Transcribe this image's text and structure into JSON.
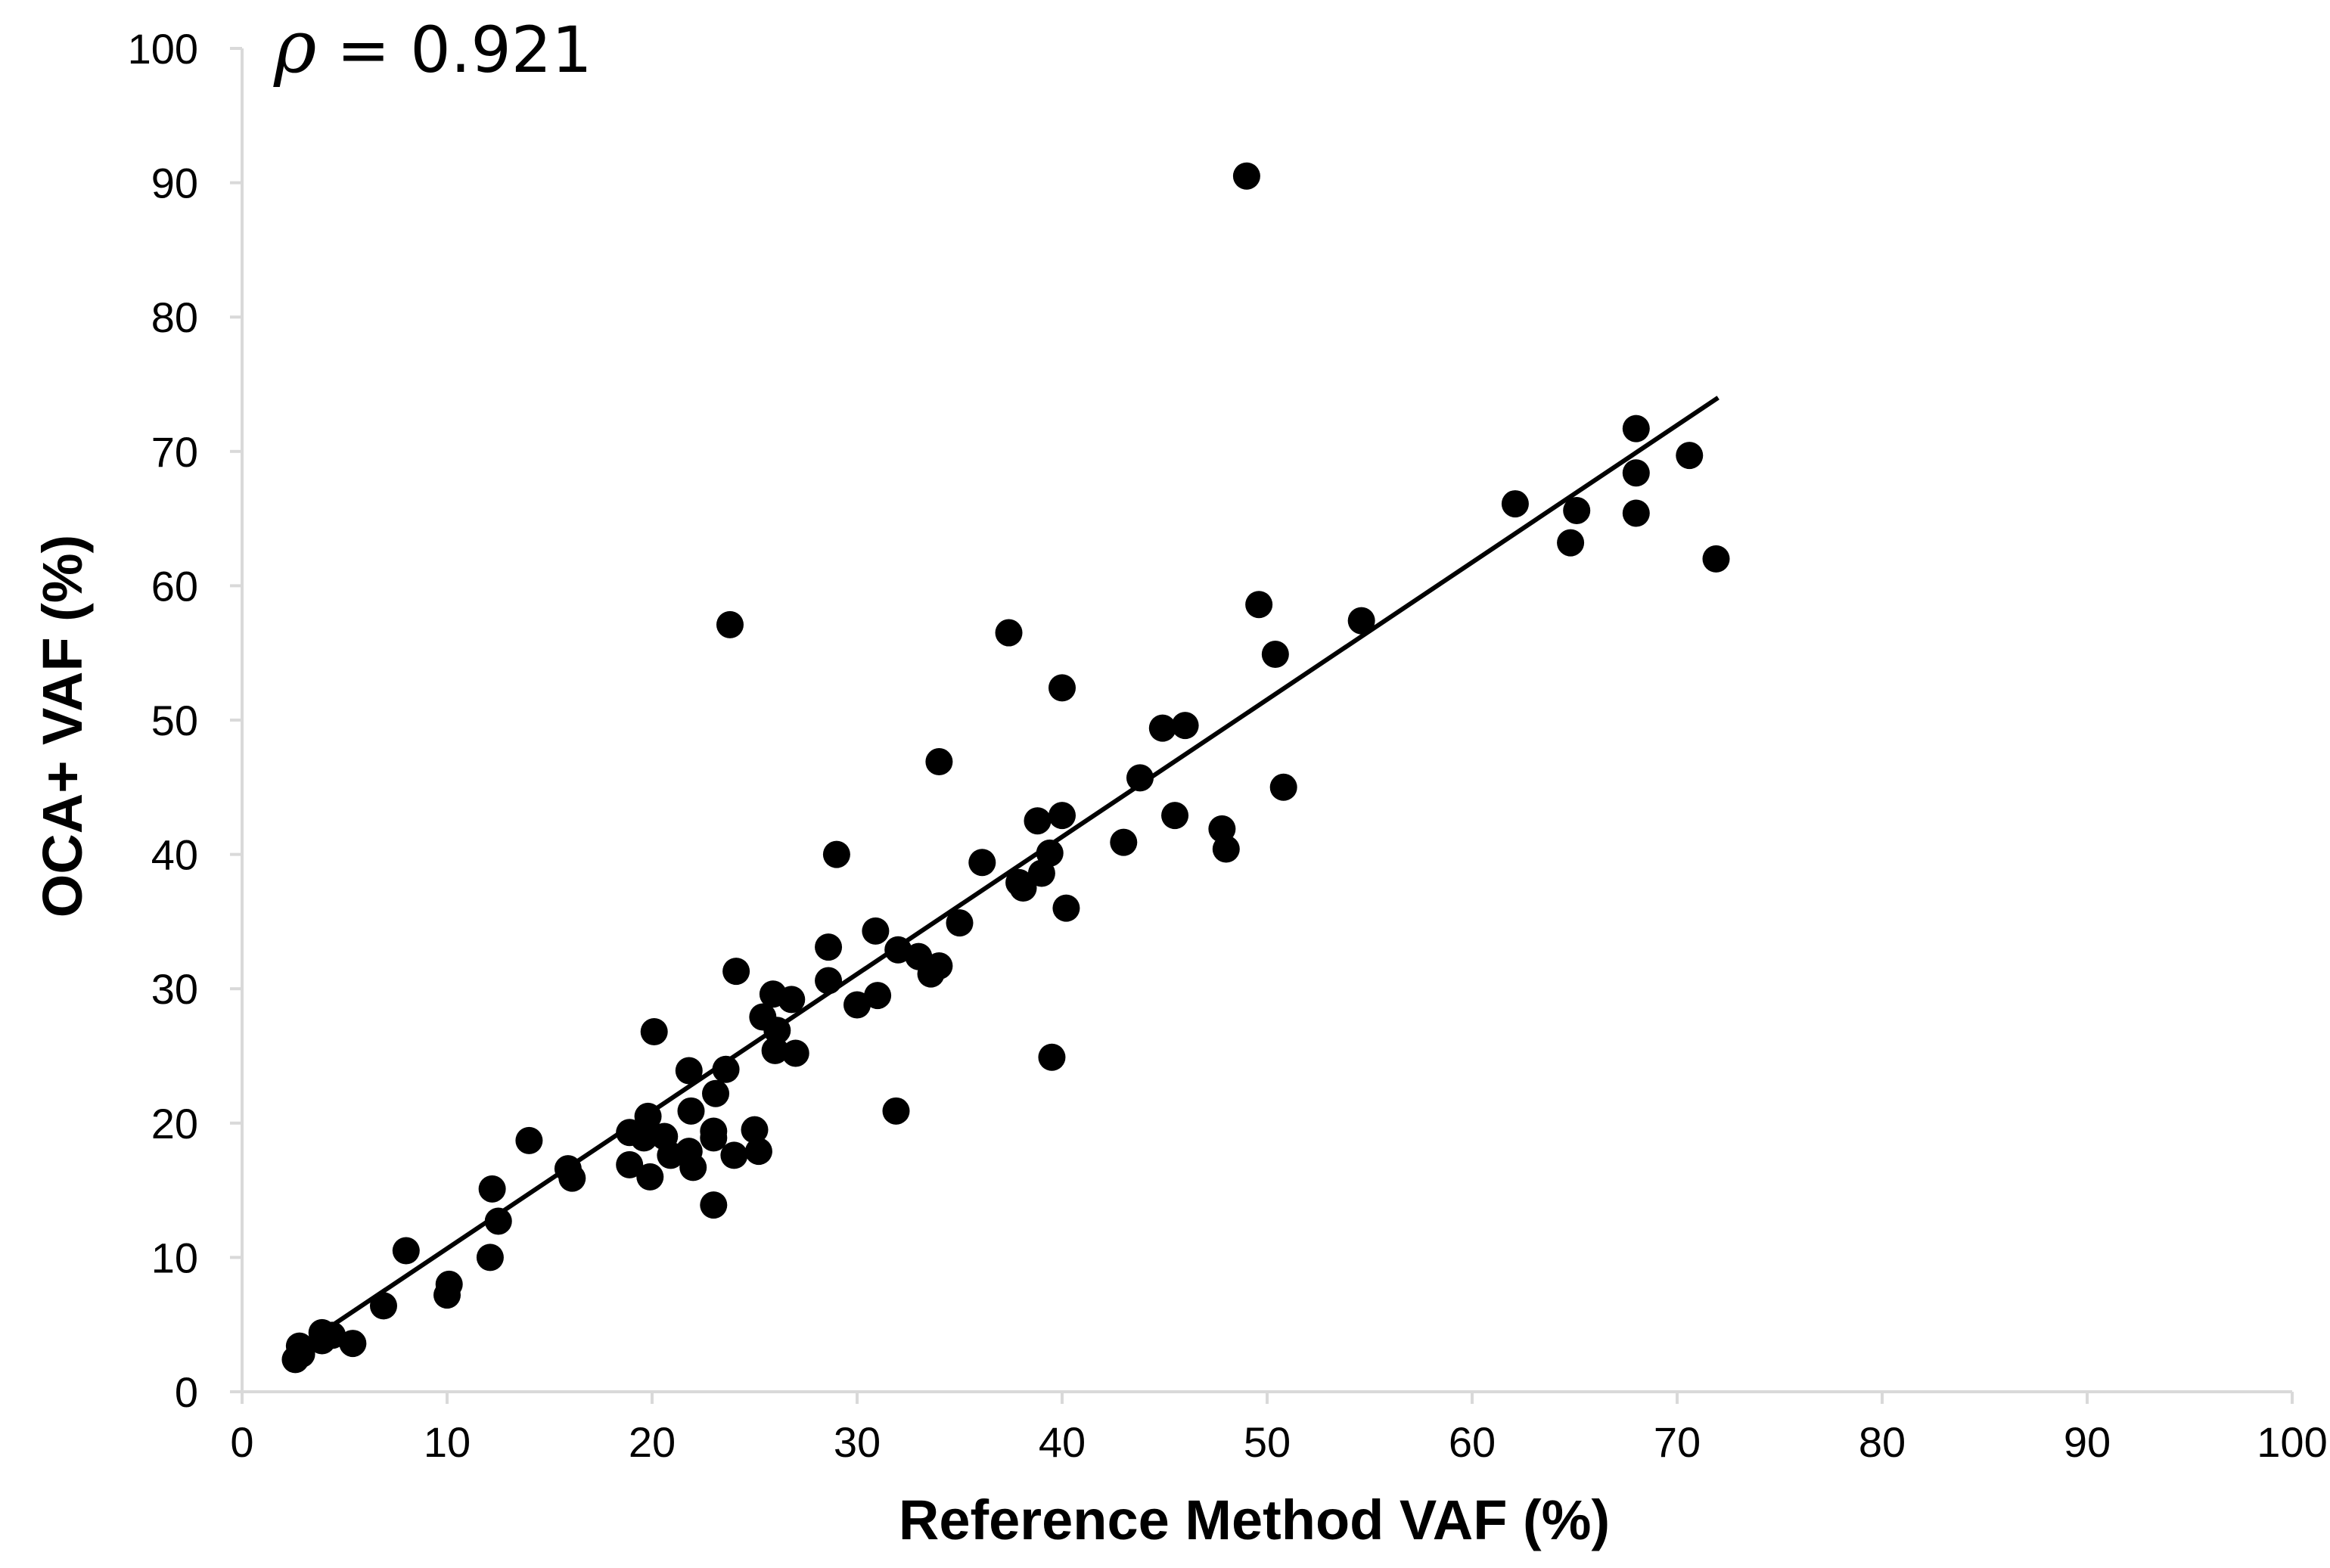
{
  "chart_data": {
    "type": "scatter",
    "title": "",
    "annotation": {
      "symbol": "ρ",
      "text": " = 0.921"
    },
    "xlabel": "Reference Method VAF (%)",
    "ylabel": "OCA+ VAF (%)",
    "xlim": [
      0,
      100
    ],
    "ylim": [
      0,
      100
    ],
    "xticks": [
      0,
      10,
      20,
      30,
      40,
      50,
      60,
      70,
      80,
      90,
      100
    ],
    "yticks": [
      0,
      10,
      20,
      30,
      40,
      50,
      60,
      70,
      80,
      90,
      100
    ],
    "grid": false,
    "legend": "none",
    "point_color": "#000000",
    "line_color": "#000000",
    "trendline": {
      "x": [
        2.5,
        72.0
      ],
      "y": [
        3.0,
        74.0
      ]
    },
    "points": [
      [
        2.6,
        2.4
      ],
      [
        2.9,
        2.8
      ],
      [
        2.8,
        3.4
      ],
      [
        3.9,
        4.4
      ],
      [
        4.4,
        4.2
      ],
      [
        3.9,
        3.8
      ],
      [
        5.4,
        3.6
      ],
      [
        6.9,
        6.4
      ],
      [
        8.0,
        10.5
      ],
      [
        10.0,
        7.2
      ],
      [
        10.1,
        8.0
      ],
      [
        12.1,
        10.0
      ],
      [
        12.2,
        15.1
      ],
      [
        12.5,
        12.7
      ],
      [
        14.0,
        18.7
      ],
      [
        15.9,
        16.6
      ],
      [
        16.1,
        15.9
      ],
      [
        18.9,
        16.9
      ],
      [
        18.9,
        19.3
      ],
      [
        19.6,
        18.9
      ],
      [
        19.8,
        20.5
      ],
      [
        19.9,
        16.0
      ],
      [
        20.1,
        26.8
      ],
      [
        20.6,
        19.0
      ],
      [
        20.9,
        17.6
      ],
      [
        21.8,
        23.9
      ],
      [
        21.8,
        17.9
      ],
      [
        21.9,
        20.9
      ],
      [
        22.0,
        16.7
      ],
      [
        23.0,
        13.9
      ],
      [
        23.0,
        18.9
      ],
      [
        23.0,
        19.4
      ],
      [
        23.1,
        22.2
      ],
      [
        23.6,
        24.0
      ],
      [
        23.8,
        57.1
      ],
      [
        24.0,
        17.6
      ],
      [
        24.1,
        31.3
      ],
      [
        25.0,
        19.5
      ],
      [
        25.2,
        17.9
      ],
      [
        25.4,
        27.9
      ],
      [
        25.9,
        29.6
      ],
      [
        26.0,
        25.4
      ],
      [
        26.1,
        26.9
      ],
      [
        26.8,
        29.2
      ],
      [
        27.0,
        25.2
      ],
      [
        28.6,
        33.1
      ],
      [
        28.6,
        30.6
      ],
      [
        29.0,
        40.0
      ],
      [
        30.0,
        28.8
      ],
      [
        30.9,
        34.3
      ],
      [
        31.0,
        29.5
      ],
      [
        31.9,
        20.9
      ],
      [
        32.0,
        32.9
      ],
      [
        33.0,
        32.4
      ],
      [
        33.6,
        31.1
      ],
      [
        34.0,
        31.7
      ],
      [
        34.0,
        46.9
      ],
      [
        35.0,
        34.9
      ],
      [
        36.1,
        39.4
      ],
      [
        37.4,
        56.5
      ],
      [
        37.9,
        37.9
      ],
      [
        38.1,
        37.5
      ],
      [
        38.8,
        42.5
      ],
      [
        39.0,
        38.6
      ],
      [
        39.4,
        40.1
      ],
      [
        39.5,
        24.9
      ],
      [
        40.0,
        52.4
      ],
      [
        40.0,
        42.9
      ],
      [
        40.2,
        36.0
      ],
      [
        43.0,
        40.9
      ],
      [
        43.8,
        45.7
      ],
      [
        44.9,
        49.4
      ],
      [
        45.5,
        42.9
      ],
      [
        46.0,
        49.6
      ],
      [
        47.8,
        41.9
      ],
      [
        48.0,
        40.4
      ],
      [
        49.0,
        90.5
      ],
      [
        49.6,
        58.6
      ],
      [
        50.4,
        54.9
      ],
      [
        50.8,
        45.0
      ],
      [
        54.6,
        57.4
      ],
      [
        62.1,
        66.1
      ],
      [
        64.8,
        63.2
      ],
      [
        65.1,
        65.6
      ],
      [
        68.0,
        71.7
      ],
      [
        68.0,
        68.4
      ],
      [
        68.0,
        65.4
      ],
      [
        70.6,
        69.7
      ],
      [
        71.9,
        62.0
      ]
    ]
  }
}
